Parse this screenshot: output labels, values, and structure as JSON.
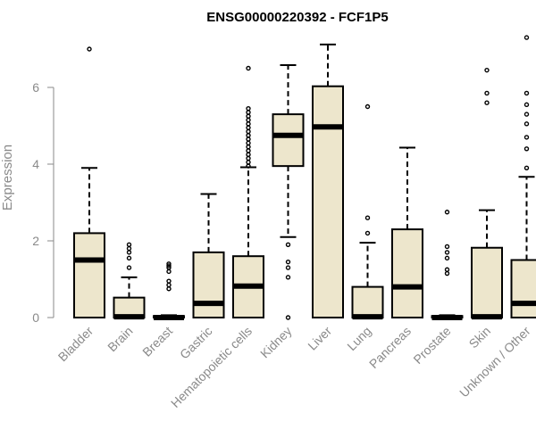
{
  "chart_data": {
    "type": "boxplot",
    "title": "ENSG00000220392 - FCF1P5",
    "xlabel": "",
    "ylabel": "Expression",
    "ylim": [
      0,
      7.3
    ],
    "yticks": [
      0,
      2,
      4,
      6
    ],
    "box_color": "#ede6cc",
    "categories": [
      "Bladder",
      "Brain",
      "Breast",
      "Gastric",
      "Hematopoietic cells",
      "Kidney",
      "Liver",
      "Lung",
      "Pancreas",
      "Prostate",
      "Skin",
      "Unknown / Other"
    ],
    "boxes": [
      {
        "name": "Bladder",
        "q1": 0,
        "median": 1.5,
        "q3": 2.2,
        "whisker_low": 0,
        "whisker_high": 3.9,
        "outliers": [
          7.0
        ]
      },
      {
        "name": "Brain",
        "q1": 0,
        "median": 0.02,
        "q3": 0.52,
        "whisker_low": 0,
        "whisker_high": 1.05,
        "outliers": [
          1.3,
          1.55,
          1.7,
          1.8,
          1.9
        ]
      },
      {
        "name": "Breast",
        "q1": 0,
        "median": 0.0,
        "q3": 0.04,
        "whisker_low": 0,
        "whisker_high": 0.06,
        "outliers": [
          0.75,
          0.85,
          0.95,
          1.2,
          1.3,
          1.35,
          1.4
        ]
      },
      {
        "name": "Gastric",
        "q1": 0,
        "median": 0.37,
        "q3": 1.7,
        "whisker_low": 0,
        "whisker_high": 3.22,
        "outliers": []
      },
      {
        "name": "Hematopoietic cells",
        "q1": 0,
        "median": 0.82,
        "q3": 1.6,
        "whisker_low": 0,
        "whisker_high": 3.92,
        "outliers": [
          3.95,
          4.05,
          4.15,
          4.25,
          4.35,
          4.45,
          4.55,
          4.65,
          4.75,
          4.85,
          4.95,
          5.05,
          5.15,
          5.25,
          5.35,
          5.45,
          6.5
        ]
      },
      {
        "name": "Kidney",
        "q1": 3.95,
        "median": 4.75,
        "q3": 5.3,
        "whisker_low": 2.1,
        "whisker_high": 6.58,
        "outliers": [
          1.9,
          1.45,
          1.3,
          1.05,
          0.0
        ]
      },
      {
        "name": "Liver",
        "q1": 0,
        "median": 4.97,
        "q3": 6.03,
        "whisker_low": 0,
        "whisker_high": 7.12,
        "outliers": []
      },
      {
        "name": "Lung",
        "q1": 0,
        "median": 0.02,
        "q3": 0.8,
        "whisker_low": 0,
        "whisker_high": 1.95,
        "outliers": [
          2.2,
          2.6,
          5.5
        ]
      },
      {
        "name": "Pancreas",
        "q1": 0,
        "median": 0.8,
        "q3": 2.3,
        "whisker_low": 0,
        "whisker_high": 4.43,
        "outliers": []
      },
      {
        "name": "Prostate",
        "q1": 0,
        "median": 0.0,
        "q3": 0.04,
        "whisker_low": 0,
        "whisker_high": 0.06,
        "outliers": [
          1.15,
          1.25,
          1.55,
          1.7,
          1.85,
          2.75
        ]
      },
      {
        "name": "Skin",
        "q1": 0,
        "median": 0.02,
        "q3": 1.82,
        "whisker_low": 0,
        "whisker_high": 2.8,
        "outliers": [
          5.6,
          5.85,
          6.45
        ]
      },
      {
        "name": "Unknown / Other",
        "q1": 0,
        "median": 0.37,
        "q3": 1.5,
        "whisker_low": 0,
        "whisker_high": 3.67,
        "outliers": [
          3.9,
          4.4,
          4.7,
          5.05,
          5.3,
          5.55,
          5.85,
          7.3
        ]
      }
    ]
  }
}
